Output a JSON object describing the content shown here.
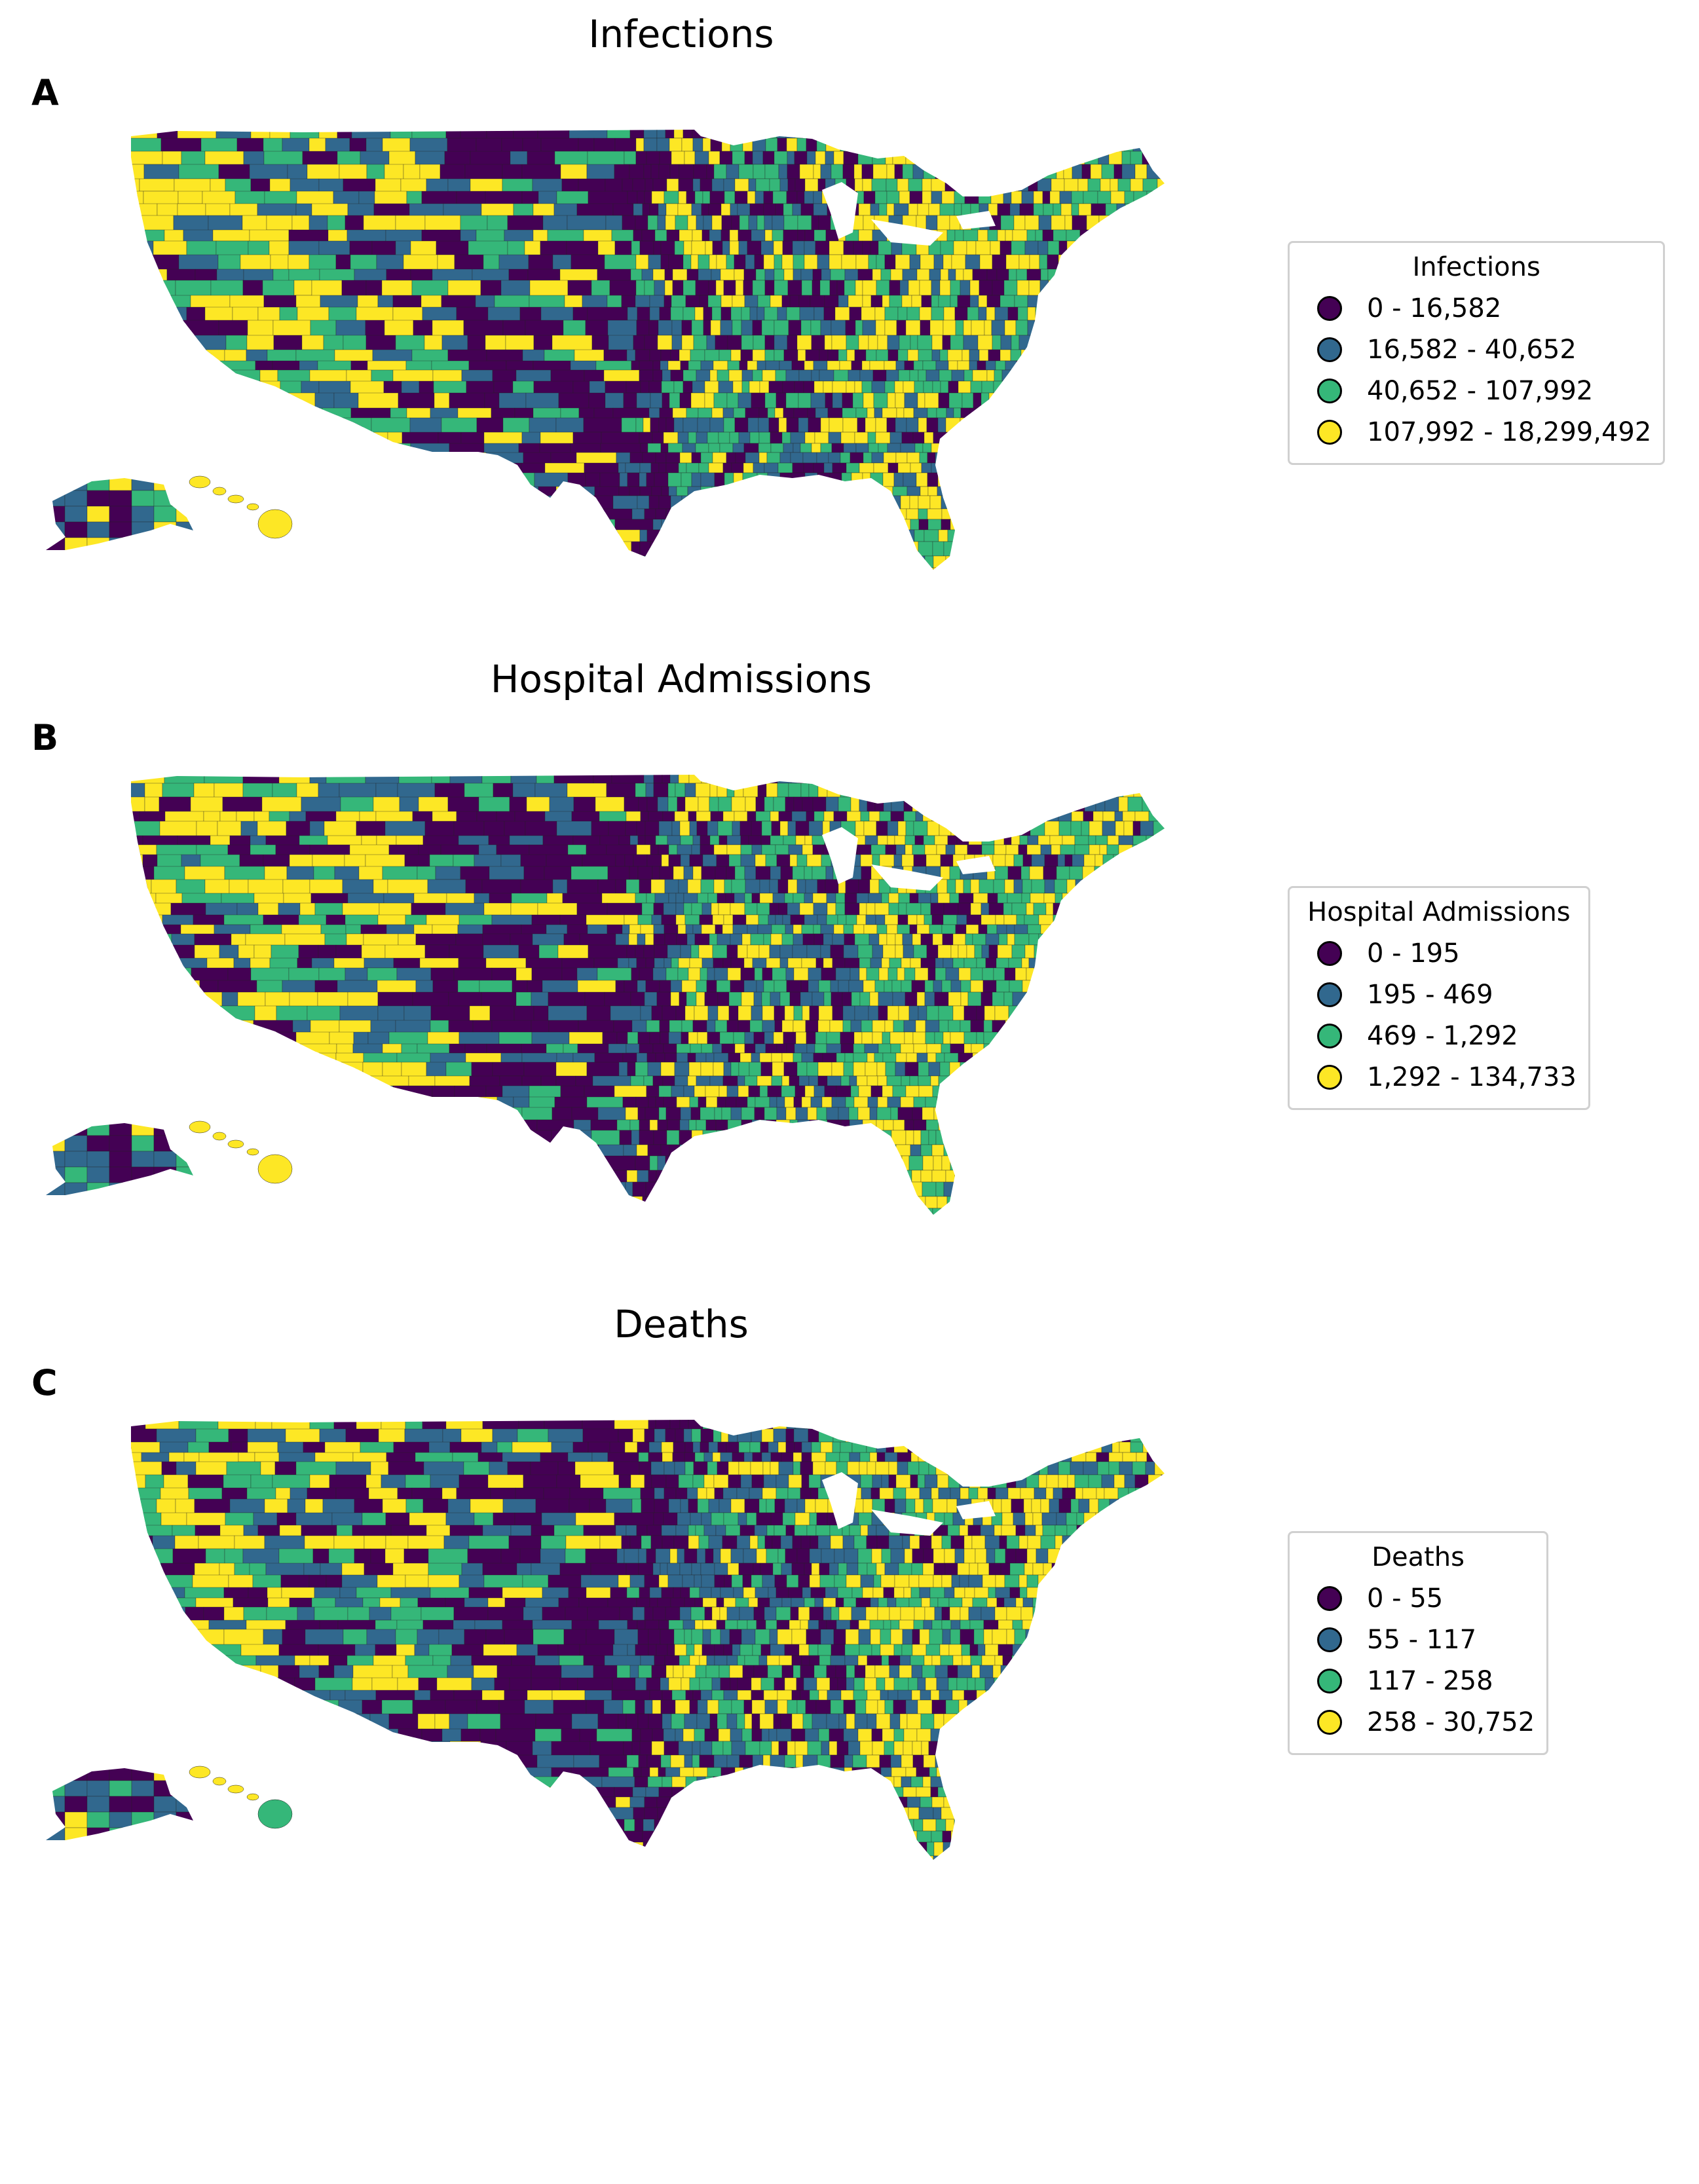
{
  "palette": {
    "class1": "#440154",
    "class2": "#31688e",
    "class3": "#35b779",
    "class4": "#fde725"
  },
  "panels": [
    {
      "letter": "A",
      "title": "Infections",
      "legend": {
        "title": "Infections",
        "items": [
          {
            "label": "0 - 16,582",
            "color": "#440154"
          },
          {
            "label": "16,582 - 40,652",
            "color": "#31688e"
          },
          {
            "label": "40,652 - 107,992",
            "color": "#35b779"
          },
          {
            "label": "107,992 - 18,299,492",
            "color": "#fde725"
          }
        ]
      }
    },
    {
      "letter": "B",
      "title": "Hospital Admissions",
      "legend": {
        "title": "Hospital Admissions",
        "items": [
          {
            "label": "0 - 195",
            "color": "#440154"
          },
          {
            "label": "195 - 469",
            "color": "#31688e"
          },
          {
            "label": "469 - 1,292",
            "color": "#35b779"
          },
          {
            "label": "1,292 - 134,733",
            "color": "#fde725"
          }
        ]
      }
    },
    {
      "letter": "C",
      "title": "Deaths",
      "legend": {
        "title": "Deaths",
        "items": [
          {
            "label": "0 - 55",
            "color": "#440154"
          },
          {
            "label": "55 - 117",
            "color": "#31688e"
          },
          {
            "label": "117 - 258",
            "color": "#35b779"
          },
          {
            "label": "258 - 30,752",
            "color": "#fde725"
          }
        ]
      }
    }
  ]
}
